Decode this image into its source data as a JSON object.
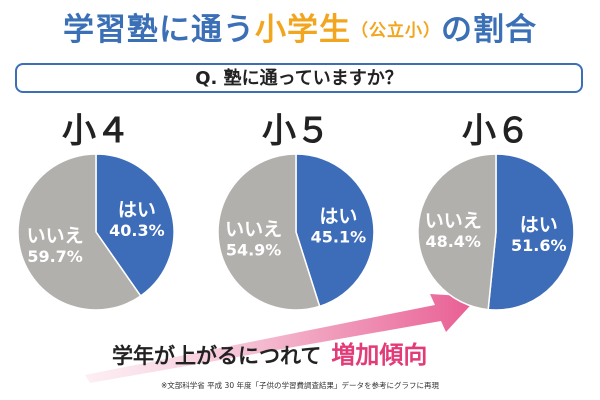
{
  "title": {
    "part1": "学習塾に通う",
    "part2": "小学生",
    "part2_sub": "（公立小）",
    "part3": "の割合"
  },
  "question": "Q. 塾に通っていますか？",
  "colors": {
    "yes": "#3d6cb9",
    "no": "#b2b0ad",
    "title_blue": "#3b6fb6",
    "title_orange": "#f2a51e",
    "highlight": "#e23b77"
  },
  "chart_data": [
    {
      "type": "pie",
      "title": "小４",
      "slices": [
        {
          "label": "はい",
          "value": 40.3,
          "value_text": "40.3%",
          "color": "#3d6cb9"
        },
        {
          "label": "いいえ",
          "value": 59.7,
          "value_text": "59.7%",
          "color": "#b2b0ad"
        }
      ]
    },
    {
      "type": "pie",
      "title": "小５",
      "slices": [
        {
          "label": "はい",
          "value": 45.1,
          "value_text": "45.1%",
          "color": "#3d6cb9"
        },
        {
          "label": "いいえ",
          "value": 54.9,
          "value_text": "54.9%",
          "color": "#b2b0ad"
        }
      ]
    },
    {
      "type": "pie",
      "title": "小６",
      "slices": [
        {
          "label": "はい",
          "value": 51.6,
          "value_text": "51.6%",
          "color": "#3d6cb9"
        },
        {
          "label": "いいえ",
          "value": 48.4,
          "value_text": "48.4%",
          "color": "#b2b0ad"
        }
      ]
    }
  ],
  "trend": {
    "text": "学年が上がるにつれて",
    "highlight": "増加傾向"
  },
  "source": "※文部科学省 平成 30 年度「子供の学習費調査結果」データを参考にグラフに再現"
}
